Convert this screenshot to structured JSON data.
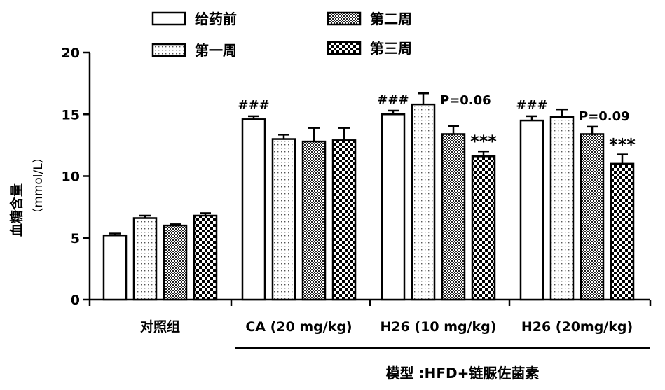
{
  "chart_data": {
    "type": "bar",
    "ylabel_line1": "血糖含量",
    "ylabel_line2": "（mmol/L）",
    "ylim": [
      0,
      20
    ],
    "yticks": [
      "0",
      "5",
      "10",
      "15",
      "20"
    ],
    "categories": [
      "对照组",
      "CA (20 mg/kg)",
      "H26 (10 mg/kg)",
      "H26 (20mg/kg)"
    ],
    "group_bracket_label": "模型 :HFD+链脲佐菌素",
    "series": [
      {
        "name": "给药前",
        "pattern": "solid-white",
        "values": [
          5.2,
          14.6,
          15.0,
          14.5
        ],
        "errors": [
          0.15,
          0.25,
          0.3,
          0.35
        ]
      },
      {
        "name": "第一周",
        "pattern": "fine-dots",
        "values": [
          6.6,
          13.0,
          15.8,
          14.8
        ],
        "errors": [
          0.2,
          0.35,
          0.9,
          0.6
        ]
      },
      {
        "name": "第二周",
        "pattern": "dense-check",
        "values": [
          6.0,
          12.8,
          13.4,
          13.4
        ],
        "errors": [
          0.1,
          1.1,
          0.65,
          0.6
        ]
      },
      {
        "name": "第三周",
        "pattern": "coarse-check",
        "values": [
          6.8,
          12.9,
          11.6,
          11.0
        ],
        "errors": [
          0.2,
          1.0,
          0.4,
          0.75
        ]
      }
    ],
    "annotations": [
      {
        "group": 1,
        "series": 0,
        "text": "###"
      },
      {
        "group": 2,
        "series": 0,
        "text": "###"
      },
      {
        "group": 2,
        "series": 1,
        "text": "P=0.06"
      },
      {
        "group": 2,
        "series": 3,
        "text": "***"
      },
      {
        "group": 3,
        "series": 0,
        "text": "###"
      },
      {
        "group": 3,
        "series": 1,
        "text": "P=0.09"
      },
      {
        "group": 3,
        "series": 3,
        "text": "***"
      }
    ],
    "legend_position": "top"
  }
}
